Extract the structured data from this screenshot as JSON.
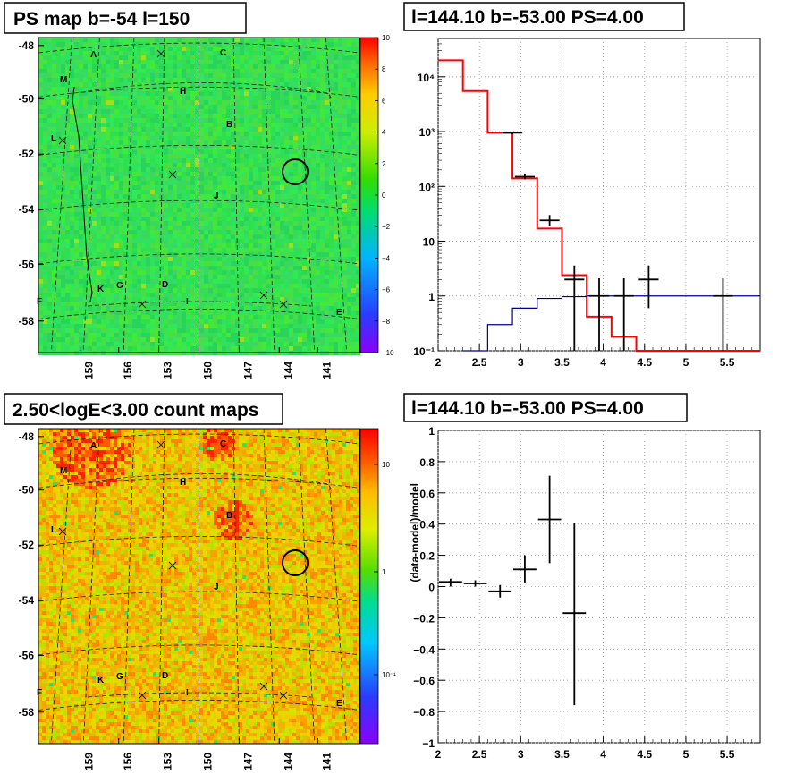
{
  "panels": [
    {
      "id": "ps-map",
      "title": "PS map b=-54 l=150",
      "colorbar": {
        "ticks": [
          "10",
          "8",
          "6",
          "4",
          "2",
          "0",
          "−2",
          "−4",
          "−6",
          "−8",
          "−10"
        ],
        "scale": "linear"
      },
      "yticks": [
        "-48",
        "-50",
        "-52",
        "-54",
        "-56",
        "-58"
      ],
      "xticks": [
        "159",
        "156",
        "153",
        "150",
        "147",
        "144",
        "141"
      ],
      "labels": [
        "A",
        "C",
        "M",
        "H",
        "B",
        "L",
        "J",
        "K",
        "G",
        "D",
        "I",
        "E",
        "F"
      ]
    },
    {
      "id": "count-map",
      "title": "2.50<logE<3.00 count maps",
      "colorbar": {
        "ticks": [
          "10",
          "1",
          "10⁻¹"
        ],
        "scale": "log"
      },
      "yticks": [
        "-48",
        "-50",
        "-52",
        "-54",
        "-56",
        "-58"
      ],
      "xticks": [
        "159",
        "156",
        "153",
        "150",
        "147",
        "144",
        "141"
      ],
      "labels": [
        "A",
        "C",
        "M",
        "H",
        "B",
        "L",
        "J",
        "K",
        "G",
        "D",
        "I",
        "E",
        "F"
      ]
    }
  ],
  "chart_data": [
    {
      "type": "step",
      "title": "l=144.10 b=-53.00 PS=4.00",
      "xlabel": "",
      "ylabel": "",
      "xlim": [
        2,
        5.9
      ],
      "ylim": [
        0.1,
        50000
      ],
      "yscale": "log",
      "grid": true,
      "xticks": [
        "2",
        "2.5",
        "3",
        "3.5",
        "4",
        "4.5",
        "5",
        "5.5"
      ],
      "yticks": [
        "10⁴",
        "10³",
        "10²",
        "10",
        "1",
        "10⁻¹"
      ],
      "series": [
        {
          "style": "red-step",
          "color": "#ff0000",
          "edges": [
            2.0,
            2.3,
            2.6,
            2.9,
            3.2,
            3.5,
            3.8,
            4.1,
            4.4,
            5.9
          ],
          "values": [
            20000,
            5500,
            950,
            140,
            17,
            2.4,
            0.42,
            0.18,
            0.1
          ]
        },
        {
          "style": "blue-step",
          "color": "#00008b",
          "edges": [
            2.3,
            2.6,
            2.9,
            3.2,
            3.5,
            3.8,
            4.1,
            4.4,
            5.9
          ],
          "values": [
            0.1,
            0.3,
            0.6,
            0.9,
            0.97,
            1.0,
            1.0,
            1.0
          ]
        },
        {
          "style": "black-errorbar",
          "color": "#000000",
          "points": [
            {
              "x": 2.9,
              "y": 950,
              "xerr": 0.12,
              "ylo": 900,
              "yhi": 1000
            },
            {
              "x": 3.05,
              "y": 150,
              "xerr": 0.12,
              "ylo": 135,
              "yhi": 165
            },
            {
              "x": 3.35,
              "y": 24,
              "xerr": 0.12,
              "ylo": 19,
              "yhi": 30
            },
            {
              "x": 3.65,
              "y": 2.0,
              "xerr": 0.12,
              "ylo": 0.1,
              "yhi": 3.6
            },
            {
              "x": 3.95,
              "y": 1.0,
              "xerr": 0.12,
              "ylo": 0.1,
              "yhi": 2.1
            },
            {
              "x": 4.25,
              "y": 1.0,
              "xerr": 0.12,
              "ylo": 0.1,
              "yhi": 2.1
            },
            {
              "x": 4.55,
              "y": 2.0,
              "xerr": 0.12,
              "ylo": 0.6,
              "yhi": 3.6
            },
            {
              "x": 5.45,
              "y": 1.0,
              "xerr": 0.12,
              "ylo": 0.1,
              "yhi": 2.1
            }
          ]
        }
      ]
    },
    {
      "type": "errorbar",
      "title": "l=144.10 b=-53.00 PS=4.00",
      "xlabel": "",
      "ylabel": "(data-model)/model",
      "xlim": [
        2,
        5.9
      ],
      "ylim": [
        -1,
        1
      ],
      "grid": true,
      "xticks": [
        "2",
        "2.5",
        "3",
        "3.5",
        "4",
        "4.5",
        "5",
        "5.5"
      ],
      "yticks": [
        "1",
        "0.8",
        "0.6",
        "0.4",
        "0.2",
        "0",
        "−0.2",
        "−0.4",
        "−0.6",
        "−0.8",
        "−1"
      ],
      "points": [
        {
          "x": 2.15,
          "y": 0.03,
          "xerr": 0.14,
          "ylo": 0.0,
          "yhi": 0.05
        },
        {
          "x": 2.45,
          "y": 0.02,
          "xerr": 0.14,
          "ylo": 0.0,
          "yhi": 0.04
        },
        {
          "x": 2.75,
          "y": -0.03,
          "xerr": 0.14,
          "ylo": -0.07,
          "yhi": 0.01
        },
        {
          "x": 3.05,
          "y": 0.11,
          "xerr": 0.14,
          "ylo": 0.02,
          "yhi": 0.2
        },
        {
          "x": 3.35,
          "y": 0.43,
          "xerr": 0.14,
          "ylo": 0.15,
          "yhi": 0.71
        },
        {
          "x": 3.65,
          "y": -0.17,
          "xerr": 0.14,
          "ylo": -0.76,
          "yhi": 0.41
        }
      ]
    }
  ]
}
